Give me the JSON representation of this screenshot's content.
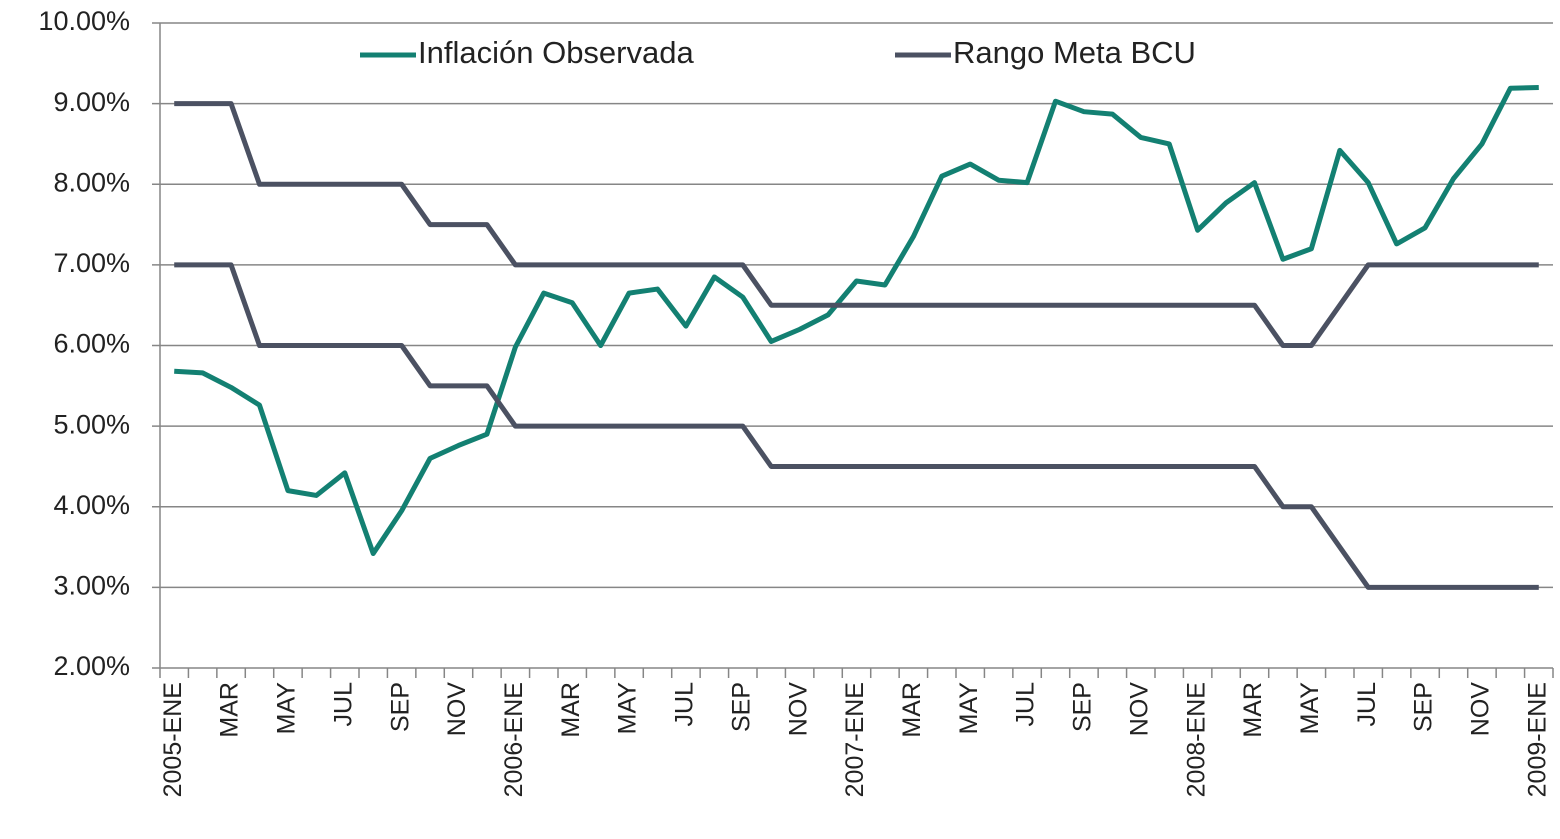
{
  "chart_data": {
    "type": "line",
    "categories": [
      "2005-ENE",
      null,
      "MAR",
      null,
      "MAY",
      null,
      "JUL",
      null,
      "SEP",
      null,
      "NOV",
      null,
      "2006-ENE",
      null,
      "MAR",
      null,
      "MAY",
      null,
      "JUL",
      null,
      "SEP",
      null,
      "NOV",
      null,
      "2007-ENE",
      null,
      "MAR",
      null,
      "MAY",
      null,
      "JUL",
      null,
      "SEP",
      null,
      "NOV",
      null,
      "2008-ENE",
      null,
      "MAR",
      null,
      "MAY",
      null,
      "JUL",
      null,
      "SEP",
      null,
      "NOV",
      null,
      "2009-ENE"
    ],
    "series": [
      {
        "name": "Inflación Observada",
        "color": "#138072",
        "values": [
          5.68,
          5.66,
          5.48,
          5.26,
          4.2,
          4.14,
          4.42,
          3.42,
          3.95,
          4.6,
          4.76,
          4.9,
          5.98,
          6.65,
          6.53,
          6.0,
          6.65,
          6.7,
          6.24,
          6.85,
          6.6,
          6.05,
          6.2,
          6.38,
          6.8,
          6.75,
          7.35,
          8.1,
          8.25,
          8.05,
          8.02,
          9.03,
          8.9,
          8.87,
          8.58,
          8.5,
          7.43,
          7.77,
          8.02,
          7.07,
          7.2,
          8.42,
          8.02,
          7.26,
          7.46,
          8.07,
          8.5,
          9.19,
          9.2
        ]
      },
      {
        "name": "Rango Meta BCU",
        "color": "#4b5162",
        "values": [
          9,
          9,
          9,
          8,
          8,
          8,
          8,
          8,
          8,
          7.5,
          7.5,
          7.5,
          7,
          7,
          7,
          7,
          7,
          7,
          7,
          7,
          7,
          6.5,
          6.5,
          6.5,
          6.5,
          6.5,
          6.5,
          6.5,
          6.5,
          6.5,
          6.5,
          6.5,
          6.5,
          6.5,
          6.5,
          6.5,
          6.5,
          6.5,
          6.5,
          6,
          6,
          6.5,
          7,
          7,
          7,
          7,
          7,
          7,
          7
        ]
      },
      {
        "color": "#4b5162",
        "values": [
          7,
          7,
          7,
          6,
          6,
          6,
          6,
          6,
          6,
          5.5,
          5.5,
          5.5,
          5,
          5,
          5,
          5,
          5,
          5,
          5,
          5,
          5,
          4.5,
          4.5,
          4.5,
          4.5,
          4.5,
          4.5,
          4.5,
          4.5,
          4.5,
          4.5,
          4.5,
          4.5,
          4.5,
          4.5,
          4.5,
          4.5,
          4.5,
          4.5,
          4,
          4,
          3.5,
          3,
          3,
          3,
          3,
          3,
          3,
          3
        ]
      }
    ],
    "ylim": [
      2,
      10
    ],
    "yticks": [
      {
        "value": 2,
        "label": "2.00%"
      },
      {
        "value": 3,
        "label": "3.00%"
      },
      {
        "value": 4,
        "label": "4.00%"
      },
      {
        "value": 5,
        "label": "5.00%"
      },
      {
        "value": 6,
        "label": "6.00%"
      },
      {
        "value": 7,
        "label": "7.00%"
      },
      {
        "value": 8,
        "label": "8.00%"
      },
      {
        "value": 9,
        "label": "9.00%"
      },
      {
        "value": 10,
        "label": "10.00%"
      }
    ],
    "grid": true,
    "legend": "top"
  }
}
